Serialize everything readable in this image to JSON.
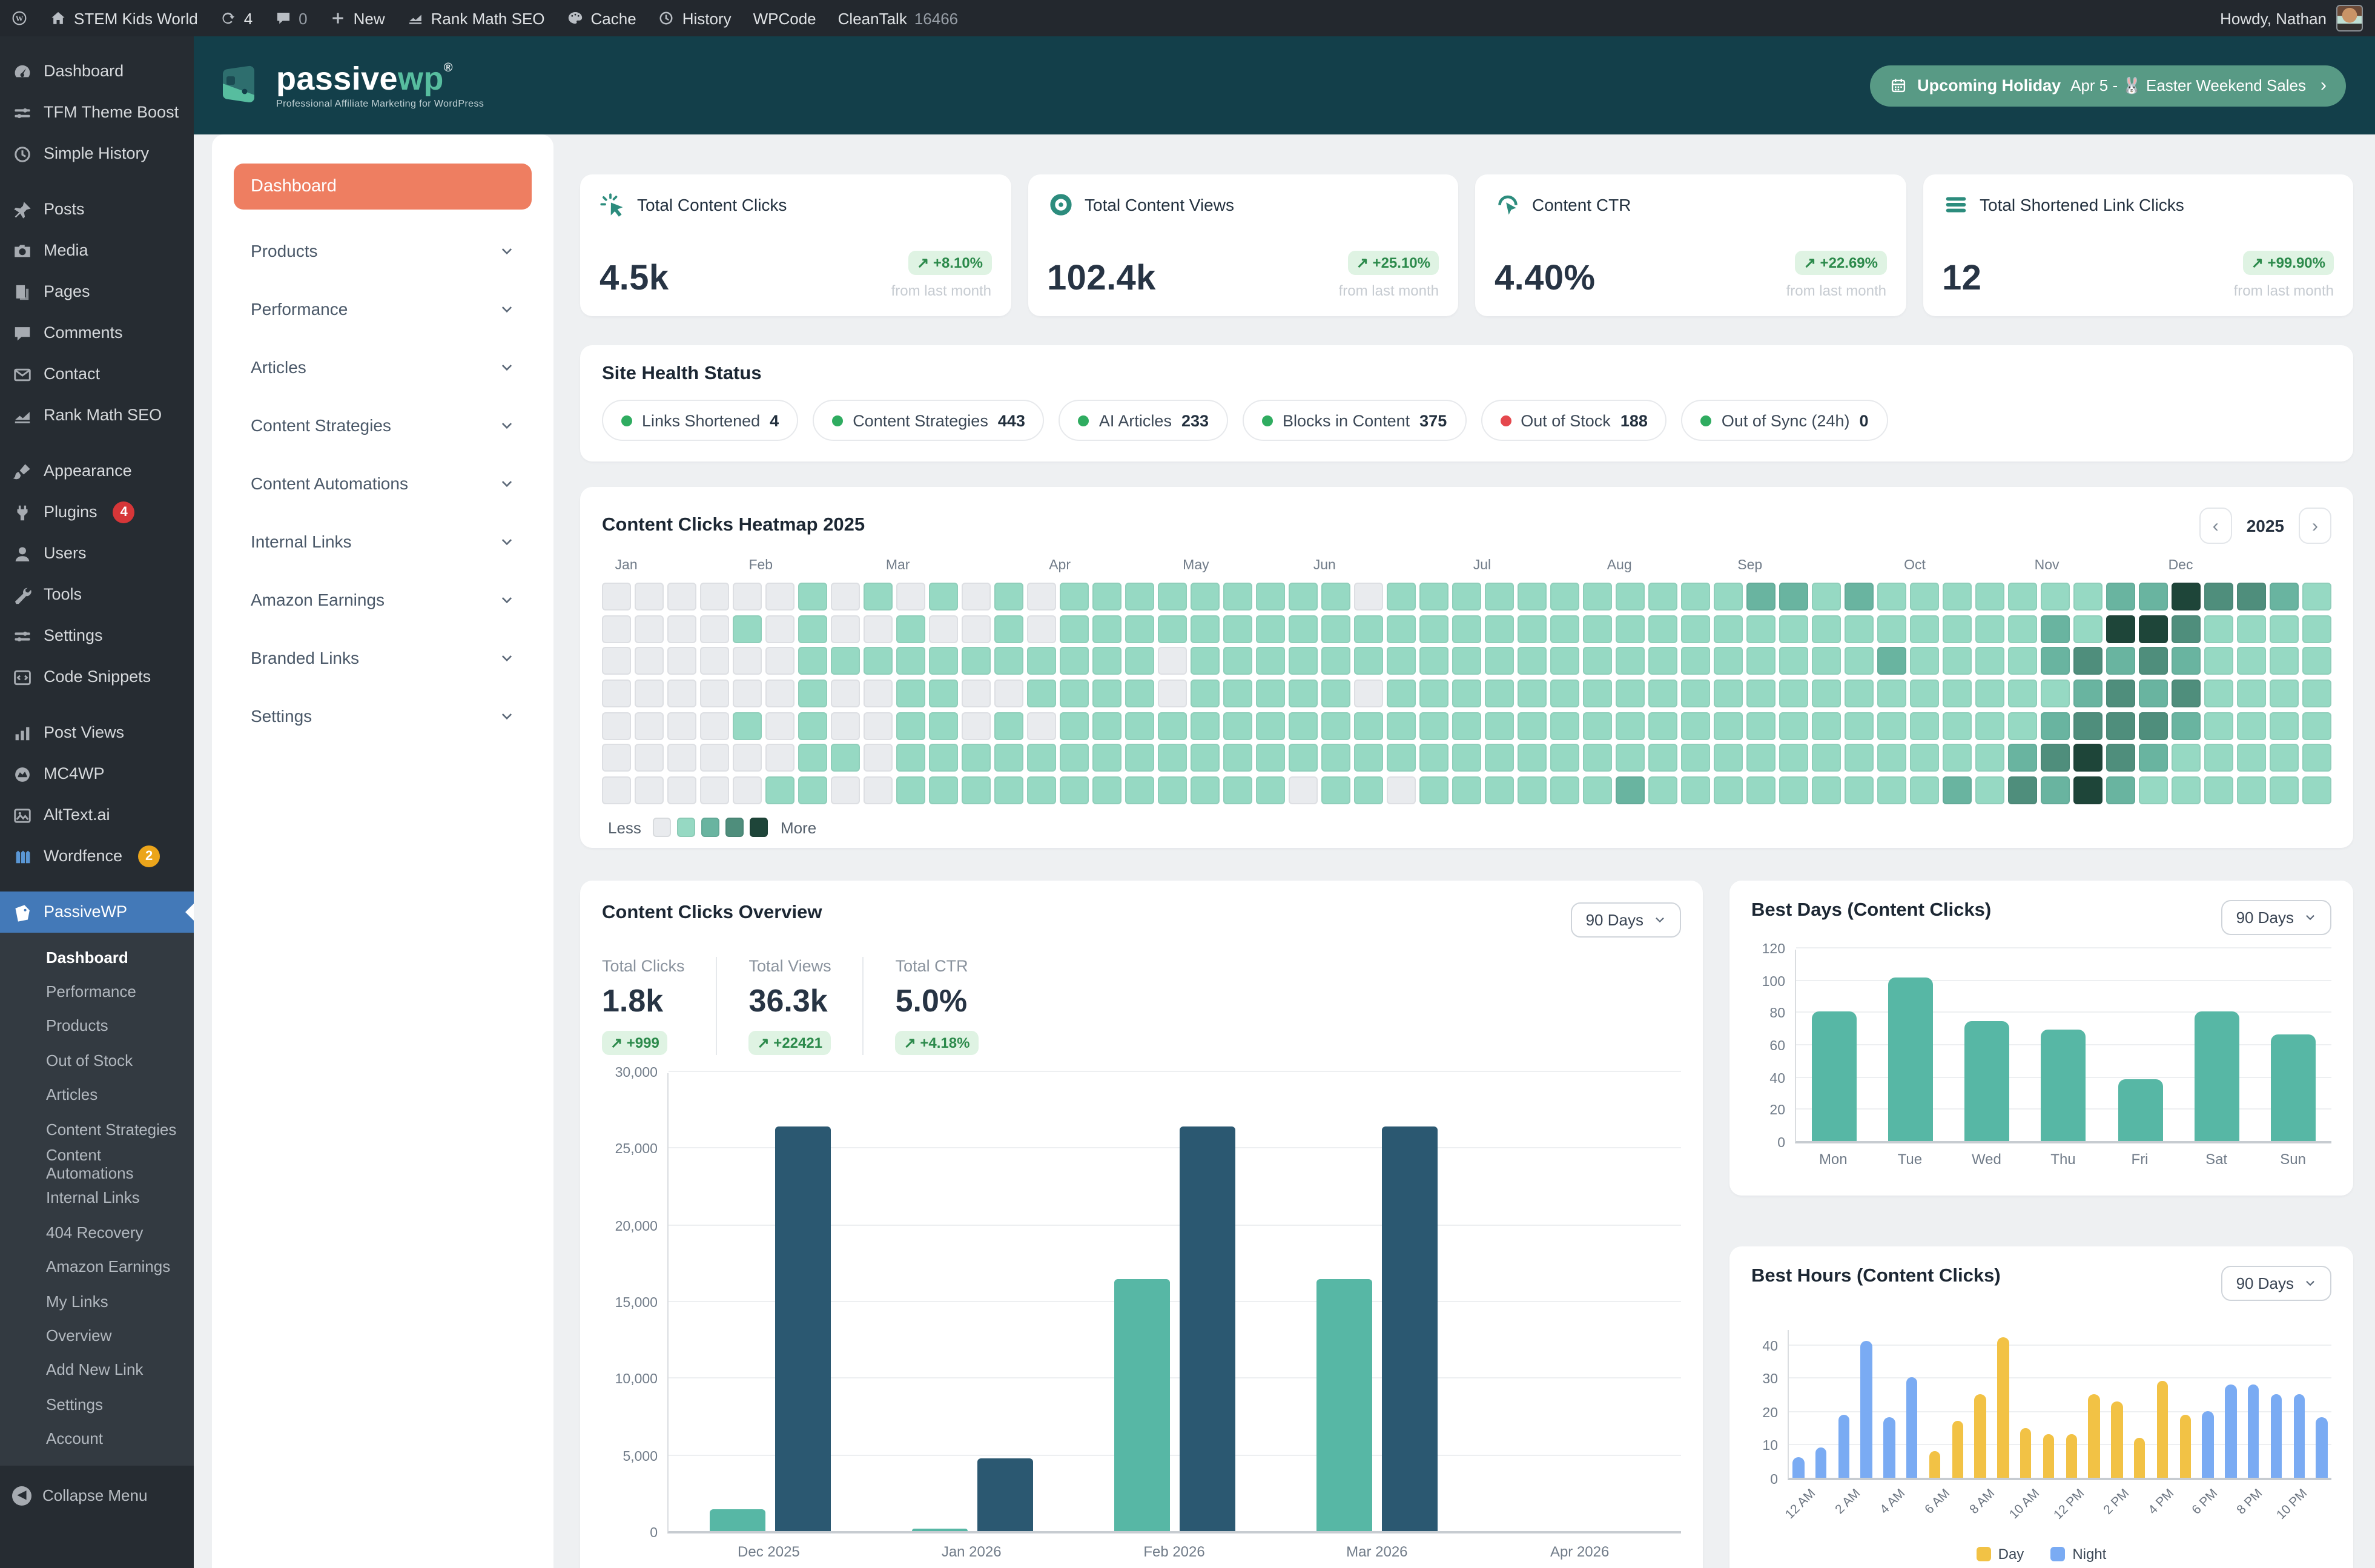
{
  "admin_bar": {
    "site_name": "STEM Kids World",
    "updates_count": "4",
    "comments_count": "0",
    "new_label": "New",
    "rank_math_label": "Rank Math SEO",
    "cache_label": "Cache",
    "history_label": "History",
    "wpcode_label": "WPCode",
    "cleantalk_label": "CleanTalk",
    "cleantalk_count": "16466",
    "howdy": "Howdy, Nathan"
  },
  "wp_sidebar": {
    "groups": [
      {
        "items": [
          {
            "icon": "gauge",
            "label": "Dashboard"
          },
          {
            "icon": "sliders",
            "label": "TFM Theme Boost"
          },
          {
            "icon": "clock",
            "label": "Simple History"
          }
        ]
      },
      {
        "items": [
          {
            "icon": "pin",
            "label": "Posts"
          },
          {
            "icon": "media",
            "label": "Media"
          },
          {
            "icon": "pages",
            "label": "Pages"
          },
          {
            "icon": "comment",
            "label": "Comments"
          },
          {
            "icon": "mail",
            "label": "Contact"
          },
          {
            "icon": "chartline",
            "label": "Rank Math SEO"
          }
        ]
      },
      {
        "items": [
          {
            "icon": "brush",
            "label": "Appearance"
          },
          {
            "icon": "plug",
            "label": "Plugins",
            "badge": "4",
            "badge_color": "#d63638"
          },
          {
            "icon": "user",
            "label": "Users"
          },
          {
            "icon": "wrench",
            "label": "Tools"
          },
          {
            "icon": "sliders",
            "label": "Settings"
          },
          {
            "icon": "code",
            "label": "Code Snippets"
          }
        ]
      },
      {
        "items": [
          {
            "icon": "bars",
            "label": "Post Views"
          },
          {
            "icon": "blob",
            "label": "MC4WP"
          },
          {
            "icon": "image",
            "label": "AltText.ai"
          },
          {
            "icon": "fence",
            "label": "Wordfence",
            "badge": "2",
            "badge_color": "#eba51b"
          }
        ]
      }
    ],
    "passivewp": {
      "label": "PassiveWP",
      "submenu": [
        "Dashboard",
        "Performance",
        "Products",
        "Out of Stock",
        "Articles",
        "Content Strategies",
        "Content Automations",
        "Internal Links",
        "404 Recovery",
        "Amazon Earnings",
        "My Links",
        "Overview",
        "Add New Link",
        "Settings",
        "Account"
      ],
      "active_submenu": "Dashboard"
    },
    "collapse_label": "Collapse Menu"
  },
  "header": {
    "logo_main": "passive",
    "logo_accent": "wp",
    "logo_reg": "®",
    "tagline": "Professional Affiliate Marketing for WordPress",
    "holiday_label": "Upcoming Holiday",
    "holiday_text": "Apr 5 - 🐰 Easter Weekend Sales",
    "holiday_chevron": "›"
  },
  "plugin_sidebar": {
    "active": "Dashboard",
    "items": [
      "Products",
      "Performance",
      "Articles",
      "Content Strategies",
      "Content Automations",
      "Internal Links",
      "Amazon Earnings",
      "Branded Links",
      "Settings"
    ]
  },
  "stat_cards": [
    {
      "icon": "click",
      "title": "Total Content Clicks",
      "value": "4.5k",
      "delta": "+8.10%",
      "caption": "from last month"
    },
    {
      "icon": "target",
      "title": "Total Content Views",
      "value": "102.4k",
      "delta": "+25.10%",
      "caption": "from last month"
    },
    {
      "icon": "ctr",
      "title": "Content CTR",
      "value": "4.40%",
      "delta": "+22.69%",
      "caption": "from last month"
    },
    {
      "icon": "lines",
      "title": "Total Shortened Link Clicks",
      "value": "12",
      "delta": "+99.90%",
      "caption": "from last month"
    }
  ],
  "site_health": {
    "title": "Site Health Status",
    "pills": [
      {
        "label": "Links Shortened",
        "count": "4",
        "dot": "#2fac60"
      },
      {
        "label": "Content Strategies",
        "count": "443",
        "dot": "#2fac60"
      },
      {
        "label": "AI Articles",
        "count": "233",
        "dot": "#2fac60"
      },
      {
        "label": "Blocks in Content",
        "count": "375",
        "dot": "#2fac60"
      },
      {
        "label": "Out of Stock",
        "count": "188",
        "dot": "#e5484d"
      },
      {
        "label": "Out of Sync (24h)",
        "count": "0",
        "dot": "#2fac60"
      }
    ]
  },
  "heatmap": {
    "title": "Content Clicks Heatmap 2025",
    "year": "2025",
    "prev": "‹",
    "next": "›",
    "months": [
      "Jan",
      "Feb",
      "Mar",
      "Apr",
      "May",
      "Jun",
      "Jul",
      "Aug",
      "Sep",
      "Oct",
      "Nov",
      "Dec"
    ],
    "month_cols": [
      0.4,
      4.5,
      8.7,
      13.7,
      17.8,
      21.8,
      26.7,
      30.8,
      34.8,
      39.9,
      43.9,
      48.0
    ],
    "legend_less": "Less",
    "legend_more": "More",
    "colors": [
      "#e9ebee",
      "#96d9c3",
      "#69b4a0",
      "#4f8e7c",
      "#1e4539"
    ],
    "rows": [
      "00000010101010111111111011111111111221211111112243321",
      "00001010010010111111111111111111111111111111214431111",
      "00000011111111111011111111111111111111121111232321111",
      "00000010011001111011111011111111111111111111123231111",
      "00001010011010111111111111111111111111111111233321111",
      "00000011011111111111111111111111111111111112343211111",
      "00000110011111111111101101111112111111111213242111111"
    ]
  },
  "overview": {
    "title": "Content Clicks Overview",
    "period": "90 Days",
    "stats": [
      {
        "label": "Total Clicks",
        "value": "1.8k",
        "delta": "+999"
      },
      {
        "label": "Total Views",
        "value": "36.3k",
        "delta": "+22421"
      },
      {
        "label": "Total CTR",
        "value": "5.0%",
        "delta": "+4.18%"
      }
    ]
  },
  "best_days": {
    "title": "Best Days (Content Clicks)",
    "period": "90 Days"
  },
  "best_hours": {
    "title": "Best Hours (Content Clicks)",
    "period": "90 Days",
    "legend": [
      "Day",
      "Night"
    ]
  },
  "chart_data": [
    {
      "id": "content_clicks_overview",
      "type": "bar",
      "title": "Content Clicks Overview",
      "categories": [
        "Dec 2025",
        "Jan 2026",
        "Feb 2026",
        "Mar 2026",
        "Apr 2026"
      ],
      "series": [
        {
          "name": "green-series",
          "color": "#57b7a5",
          "values": [
            1400,
            150,
            16400,
            16400,
            0
          ]
        },
        {
          "name": "dark-series",
          "color": "#2b5871",
          "values": [
            26400,
            4700,
            26400,
            26400,
            0
          ]
        }
      ],
      "ylim": [
        0,
        30000
      ],
      "yticks": [
        0,
        5000,
        10000,
        15000,
        20000,
        25000,
        30000
      ],
      "grid": true,
      "legend_position": "none"
    },
    {
      "id": "best_days",
      "type": "bar",
      "title": "Best Days (Content Clicks)",
      "categories": [
        "Mon",
        "Tue",
        "Wed",
        "Thu",
        "Fri",
        "Sat",
        "Sun"
      ],
      "values": [
        80,
        101,
        74,
        69,
        38,
        80,
        66
      ],
      "color": "#57b7a5",
      "ylim": [
        0,
        120
      ],
      "yticks": [
        0,
        20,
        40,
        60,
        80,
        100,
        120
      ],
      "grid": true
    },
    {
      "id": "best_hours",
      "type": "bar",
      "title": "Best Hours (Content Clicks)",
      "tick_labels": [
        "12 AM",
        "2 AM",
        "4 AM",
        "6 AM",
        "8 AM",
        "10 AM",
        "12 PM",
        "2 PM",
        "4 PM",
        "6 PM",
        "8 PM",
        "10 PM"
      ],
      "values": [
        6,
        9,
        19,
        41,
        18,
        30,
        8,
        17,
        25,
        42,
        15,
        13,
        13,
        25,
        23,
        12,
        29,
        19,
        20,
        28,
        28,
        25,
        25,
        18
      ],
      "day_range": [
        6,
        17
      ],
      "colors": {
        "day": "#f2c245",
        "night": "#7aabf3"
      },
      "legend": [
        "Day",
        "Night"
      ],
      "ylim": [
        0,
        45
      ],
      "yticks": [
        0,
        10,
        20,
        30,
        40
      ],
      "grid": true
    }
  ]
}
